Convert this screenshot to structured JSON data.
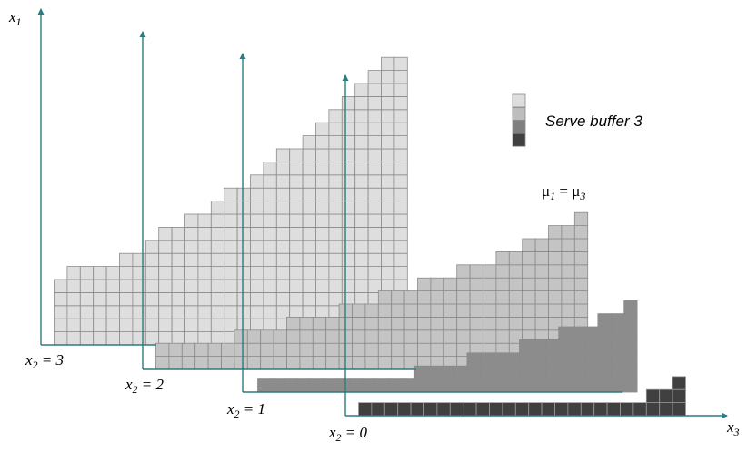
{
  "axes": {
    "x1": {
      "base": "x",
      "sub": "1"
    },
    "x3": {
      "base": "x",
      "sub": "3"
    }
  },
  "slice_labels": [
    {
      "base": "x",
      "sub": "2",
      "rest": " = 3"
    },
    {
      "base": "x",
      "sub": "2",
      "rest": " = 2"
    },
    {
      "base": "x",
      "sub": "2",
      "rest": " = 1"
    },
    {
      "base": "x",
      "sub": "2",
      "rest": " = 0"
    }
  ],
  "legend": {
    "text": "Serve buffer 3",
    "swatch_colors": [
      "#dedede",
      "#bdbdbd",
      "#7f7f7f",
      "#404040"
    ]
  },
  "condition": {
    "mu": "μ",
    "sub1": "1",
    "eq": " = ",
    "sub3": "3"
  },
  "colors": {
    "axis": "#2b7c80",
    "grid_line": "#8a8a8a",
    "slice_fills": [
      "#dedede",
      "#c4c4c4",
      "#8c8c8c",
      "#404040"
    ]
  }
}
